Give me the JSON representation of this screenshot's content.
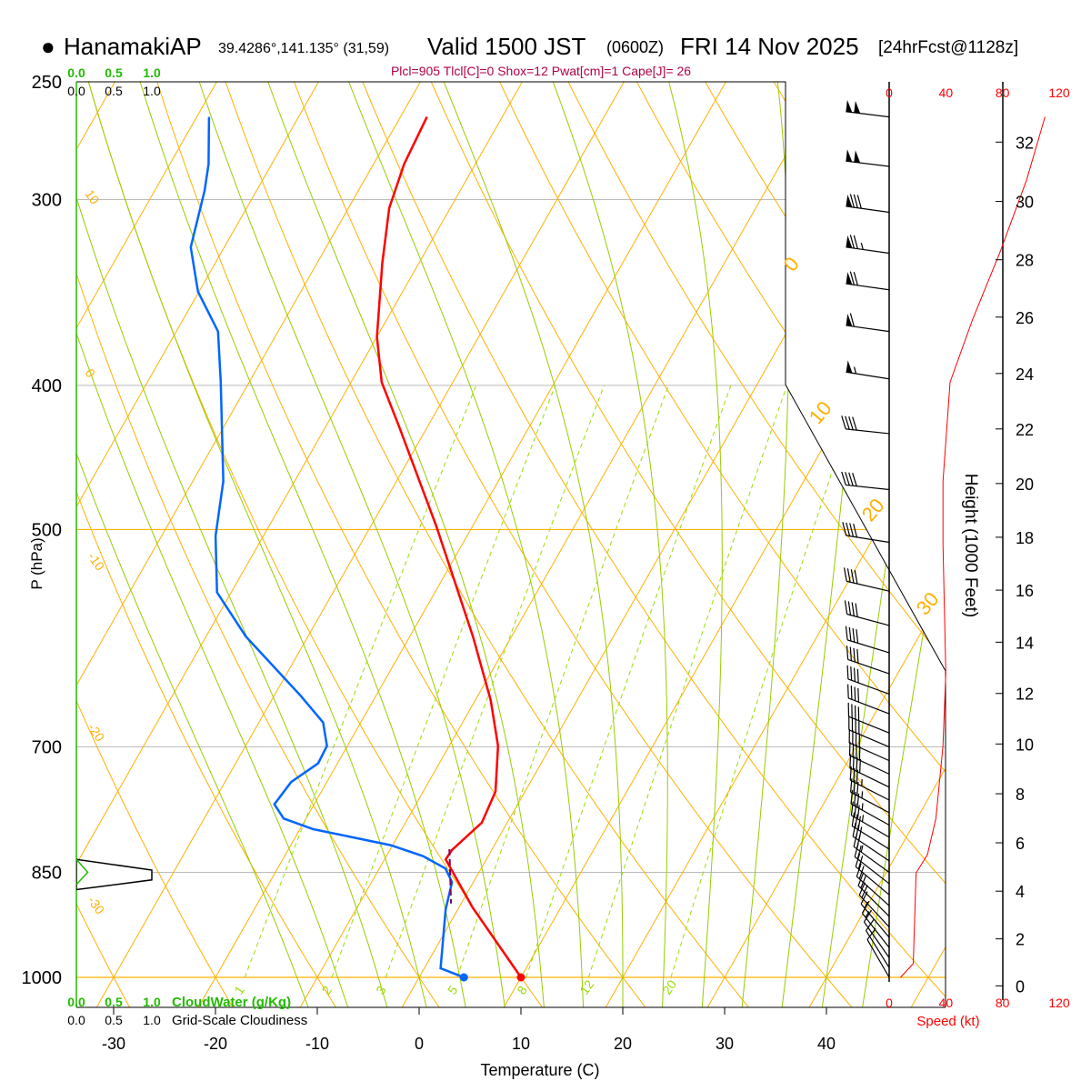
{
  "header": {
    "station_marker": "●",
    "station": "HanamakiAP",
    "coords": "39.4286°,141.135° (31,59)",
    "valid": "Valid 1500 JST",
    "zulu": "(0600Z)",
    "date": "FRI 14 Nov 2025",
    "forecast": "[24hrFcst@1128z]",
    "indices": "Plcl=905 Tlcl[C]=0 Shox=12 Pwat[cm]=1 Cape[J]= 26"
  },
  "colors": {
    "temperature": "#ff0000",
    "dewpoint": "#0066ff",
    "isotherm_adiabat": "#ffb000",
    "moist_adiabat": "#99cc00",
    "mixing_ratio": "#99dd00",
    "cloud_water": "#22bb00",
    "parcel": "#800060",
    "indices": "#b0004a"
  },
  "chart_data": {
    "type": "skew-t",
    "xlabel": "Temperature (C)",
    "ylabel": "P (hPa)",
    "right_ylabel": "Height (1000 Feet)",
    "speed_label": "Speed (kt)",
    "temperature_ticks": [
      -30,
      -20,
      -10,
      0,
      10,
      20,
      30,
      40
    ],
    "pressure_ticks": [
      250,
      300,
      400,
      500,
      700,
      850,
      1000
    ],
    "height_ticks_kft": [
      0,
      2,
      4,
      6,
      8,
      10,
      12,
      14,
      16,
      18,
      20,
      22,
      24,
      26,
      28,
      30,
      32
    ],
    "speed_ticks": [
      0,
      40,
      80,
      120
    ],
    "isotherm_labels_left": [
      "10",
      "0",
      "-10",
      "-20",
      "-30"
    ],
    "isotherm_labels_right": [
      "0",
      "10",
      "20",
      "30"
    ],
    "mixing_ratio_labels": [
      "1",
      "2",
      "3",
      "5",
      "8",
      "12",
      "20"
    ],
    "mixing_ratio_gkg": [
      1,
      2,
      3,
      5,
      8,
      12,
      20
    ],
    "cloud_water_label": "CloudWater (g/Kg)",
    "cloudiness_label": "Grid-Scale Cloudiness",
    "cloud_scale_ticks": [
      "0.0",
      "0.5",
      "1.0"
    ],
    "temperature": {
      "p": [
        1000,
        897,
        833,
        821,
        787,
        750,
        699,
        651,
        590,
        498,
        427,
        398,
        371,
        331,
        304,
        284,
        264
      ],
      "t": [
        10.0,
        1.3,
        -4.0,
        -3.9,
        -2.5,
        -2.9,
        -5.2,
        -8.5,
        -13.8,
        -23.5,
        -32.7,
        -37.0,
        -40.0,
        -43.6,
        -46.0,
        -47.0,
        -47.4
      ]
    },
    "dewpoint": {
      "p": [
        1000,
        986,
        900,
        863,
        845,
        829,
        815,
        795,
        782,
        765,
        739,
        718,
        699,
        674,
        646,
        590,
        551,
        505,
        464,
        398,
        368,
        346,
        323,
        296,
        284,
        264
      ],
      "t": [
        4.4,
        1.6,
        -1.2,
        -2.1,
        -3.5,
        -6.4,
        -10.2,
        -18.7,
        -22.2,
        -23.9,
        -23.5,
        -21.9,
        -22.0,
        -23.7,
        -27.5,
        -36.1,
        -41.4,
        -44.7,
        -47.0,
        -52.8,
        -55.9,
        -60.1,
        -63.3,
        -65.1,
        -66.2,
        -68.8
      ]
    },
    "parcel": {
      "p": [
        820,
        892
      ],
      "t": [
        -4.2,
        -1.0
      ]
    },
    "cloud_water": {
      "p": [
        833,
        850,
        866
      ],
      "v": [
        0.0,
        0.15,
        0.0
      ]
    },
    "cloudiness": {
      "p": [
        833,
        847,
        860,
        873
      ],
      "v": [
        0.0,
        1.0,
        1.0,
        0.0
      ]
    },
    "wind_speed_profile": {
      "p": [
        1000,
        979,
        851,
        827,
        782,
        699,
        624,
        512,
        464,
        398,
        361,
        326,
        291,
        264
      ],
      "kt": [
        8,
        17,
        19,
        27,
        33,
        38,
        40,
        38,
        38,
        43,
        59,
        78,
        97,
        110
      ]
    },
    "wind_barbs": [
      {
        "p": 264,
        "dir": 277,
        "kt": 100
      },
      {
        "p": 285,
        "dir": 277,
        "kt": 100
      },
      {
        "p": 306,
        "dir": 278,
        "kt": 80
      },
      {
        "p": 326,
        "dir": 278,
        "kt": 75
      },
      {
        "p": 345,
        "dir": 278,
        "kt": 70
      },
      {
        "p": 368,
        "dir": 278,
        "kt": 60
      },
      {
        "p": 396,
        "dir": 279,
        "kt": 55
      },
      {
        "p": 431,
        "dir": 276,
        "kt": 40
      },
      {
        "p": 470,
        "dir": 276,
        "kt": 40
      },
      {
        "p": 510,
        "dir": 279,
        "kt": 40
      },
      {
        "p": 550,
        "dir": 283,
        "kt": 40
      },
      {
        "p": 580,
        "dir": 285,
        "kt": 40
      },
      {
        "p": 605,
        "dir": 287,
        "kt": 40
      },
      {
        "p": 625,
        "dir": 289,
        "kt": 40
      },
      {
        "p": 645,
        "dir": 290,
        "kt": 38
      },
      {
        "p": 665,
        "dir": 291,
        "kt": 38
      },
      {
        "p": 685,
        "dir": 292,
        "kt": 38
      },
      {
        "p": 700,
        "dir": 293,
        "kt": 38
      },
      {
        "p": 715,
        "dir": 294,
        "kt": 38
      },
      {
        "p": 730,
        "dir": 295,
        "kt": 38
      },
      {
        "p": 745,
        "dir": 296,
        "kt": 38
      },
      {
        "p": 760,
        "dir": 297,
        "kt": 37
      },
      {
        "p": 775,
        "dir": 298,
        "kt": 35
      },
      {
        "p": 790,
        "dir": 299,
        "kt": 35
      },
      {
        "p": 805,
        "dir": 300,
        "kt": 33
      },
      {
        "p": 820,
        "dir": 302,
        "kt": 30
      },
      {
        "p": 835,
        "dir": 304,
        "kt": 28
      },
      {
        "p": 850,
        "dir": 306,
        "kt": 25
      },
      {
        "p": 865,
        "dir": 308,
        "kt": 22
      },
      {
        "p": 880,
        "dir": 310,
        "kt": 20
      },
      {
        "p": 895,
        "dir": 312,
        "kt": 20
      },
      {
        "p": 910,
        "dir": 315,
        "kt": 18
      },
      {
        "p": 925,
        "dir": 317,
        "kt": 18
      },
      {
        "p": 940,
        "dir": 320,
        "kt": 17
      },
      {
        "p": 955,
        "dir": 322,
        "kt": 15
      },
      {
        "p": 970,
        "dir": 325,
        "kt": 12
      },
      {
        "p": 985,
        "dir": 328,
        "kt": 10
      },
      {
        "p": 1000,
        "dir": 330,
        "kt": 8
      }
    ]
  }
}
